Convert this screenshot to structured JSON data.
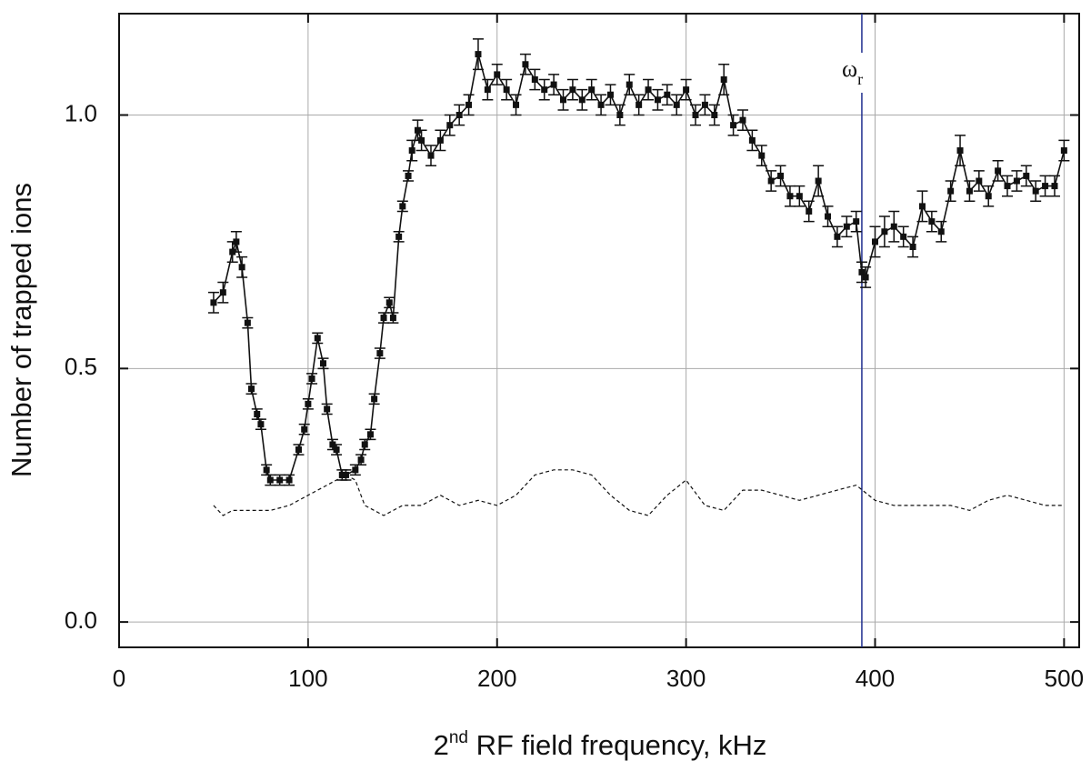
{
  "chart_data": {
    "type": "scatter",
    "ylabel": "Number of trapped ions",
    "xlabel_parts": [
      "2",
      "nd",
      " RF field frequency, kHz"
    ],
    "xlim": [
      0,
      508
    ],
    "ylim": [
      -0.05,
      1.2
    ],
    "xticks": [
      0,
      100,
      200,
      300,
      400,
      500
    ],
    "yticks": [
      {
        "value": 0,
        "label": "0.0"
      },
      {
        "value": 0.5,
        "label": "0.5"
      },
      {
        "value": 1,
        "label": "1.0"
      }
    ],
    "grid": true,
    "vlines": [
      {
        "x": 393,
        "color": "#1f2f8f",
        "label": "ω",
        "sub": "r"
      }
    ],
    "series": [
      {
        "color": "#111111",
        "marker": "square",
        "linestyle": "solid",
        "x": [
          50,
          55,
          60,
          62,
          65,
          68,
          70,
          73,
          75,
          78,
          80,
          85,
          90,
          95,
          98,
          100,
          102,
          105,
          108,
          110,
          113,
          115,
          118,
          120,
          125,
          128,
          130,
          133,
          135,
          138,
          140,
          143,
          145,
          148,
          150,
          153,
          155,
          158,
          160,
          165,
          170,
          175,
          180,
          185,
          190,
          195,
          200,
          205,
          210,
          215,
          220,
          225,
          230,
          235,
          240,
          245,
          250,
          255,
          260,
          265,
          270,
          275,
          280,
          285,
          290,
          295,
          300,
          305,
          310,
          315,
          320,
          325,
          330,
          335,
          340,
          345,
          350,
          355,
          360,
          365,
          370,
          375,
          380,
          385,
          390,
          393,
          395,
          400,
          405,
          410,
          415,
          420,
          425,
          430,
          435,
          440,
          445,
          450,
          455,
          460,
          465,
          470,
          475,
          480,
          485,
          490,
          495,
          500
        ],
        "values": [
          0.63,
          0.65,
          0.73,
          0.75,
          0.7,
          0.59,
          0.46,
          0.41,
          0.39,
          0.3,
          0.28,
          0.28,
          0.28,
          0.34,
          0.38,
          0.43,
          0.48,
          0.56,
          0.51,
          0.42,
          0.35,
          0.34,
          0.29,
          0.29,
          0.3,
          0.32,
          0.35,
          0.37,
          0.44,
          0.53,
          0.6,
          0.63,
          0.6,
          0.76,
          0.82,
          0.88,
          0.93,
          0.97,
          0.95,
          0.92,
          0.95,
          0.98,
          1.0,
          1.02,
          1.12,
          1.05,
          1.08,
          1.05,
          1.02,
          1.1,
          1.07,
          1.05,
          1.06,
          1.03,
          1.05,
          1.03,
          1.05,
          1.02,
          1.04,
          1.0,
          1.06,
          1.02,
          1.05,
          1.03,
          1.04,
          1.02,
          1.05,
          1.0,
          1.02,
          1.0,
          1.07,
          0.98,
          0.99,
          0.95,
          0.92,
          0.87,
          0.88,
          0.84,
          0.84,
          0.81,
          0.87,
          0.8,
          0.76,
          0.78,
          0.79,
          0.69,
          0.68,
          0.75,
          0.77,
          0.78,
          0.76,
          0.74,
          0.82,
          0.79,
          0.77,
          0.85,
          0.93,
          0.85,
          0.87,
          0.84,
          0.89,
          0.86,
          0.87,
          0.88,
          0.85,
          0.86,
          0.86,
          0.93
        ],
        "errors": [
          0.02,
          0.02,
          0.02,
          0.02,
          0.02,
          0.01,
          0.01,
          0.01,
          0.01,
          0.01,
          0.01,
          0.01,
          0.01,
          0.01,
          0.01,
          0.01,
          0.01,
          0.01,
          0.01,
          0.01,
          0.01,
          0.01,
          0.01,
          0.01,
          0.01,
          0.01,
          0.01,
          0.01,
          0.01,
          0.01,
          0.01,
          0.01,
          0.01,
          0.01,
          0.01,
          0.01,
          0.02,
          0.02,
          0.02,
          0.02,
          0.02,
          0.02,
          0.02,
          0.02,
          0.03,
          0.02,
          0.02,
          0.02,
          0.02,
          0.02,
          0.02,
          0.02,
          0.02,
          0.02,
          0.02,
          0.02,
          0.02,
          0.02,
          0.02,
          0.02,
          0.02,
          0.02,
          0.02,
          0.02,
          0.02,
          0.02,
          0.02,
          0.02,
          0.02,
          0.02,
          0.03,
          0.02,
          0.02,
          0.02,
          0.02,
          0.02,
          0.02,
          0.02,
          0.02,
          0.02,
          0.03,
          0.02,
          0.02,
          0.02,
          0.02,
          0.02,
          0.02,
          0.03,
          0.03,
          0.03,
          0.02,
          0.02,
          0.03,
          0.02,
          0.02,
          0.02,
          0.03,
          0.02,
          0.02,
          0.02,
          0.02,
          0.02,
          0.02,
          0.02,
          0.02,
          0.02,
          0.02,
          0.02
        ]
      },
      {
        "color": "#111111",
        "marker": "none",
        "linestyle": "dashed",
        "x": [
          50,
          55,
          60,
          70,
          80,
          90,
          100,
          110,
          120,
          125,
          130,
          135,
          140,
          150,
          160,
          170,
          180,
          190,
          200,
          210,
          220,
          230,
          240,
          250,
          260,
          270,
          280,
          290,
          300,
          310,
          320,
          330,
          340,
          350,
          360,
          370,
          380,
          390,
          400,
          410,
          420,
          430,
          440,
          450,
          460,
          470,
          480,
          490,
          500
        ],
        "values": [
          0.23,
          0.21,
          0.22,
          0.22,
          0.22,
          0.23,
          0.25,
          0.27,
          0.29,
          0.28,
          0.23,
          0.22,
          0.21,
          0.23,
          0.23,
          0.25,
          0.23,
          0.24,
          0.23,
          0.25,
          0.29,
          0.3,
          0.3,
          0.29,
          0.25,
          0.22,
          0.21,
          0.25,
          0.28,
          0.23,
          0.22,
          0.26,
          0.26,
          0.25,
          0.24,
          0.25,
          0.26,
          0.27,
          0.24,
          0.23,
          0.23,
          0.23,
          0.23,
          0.22,
          0.24,
          0.25,
          0.24,
          0.23,
          0.23
        ]
      }
    ]
  }
}
